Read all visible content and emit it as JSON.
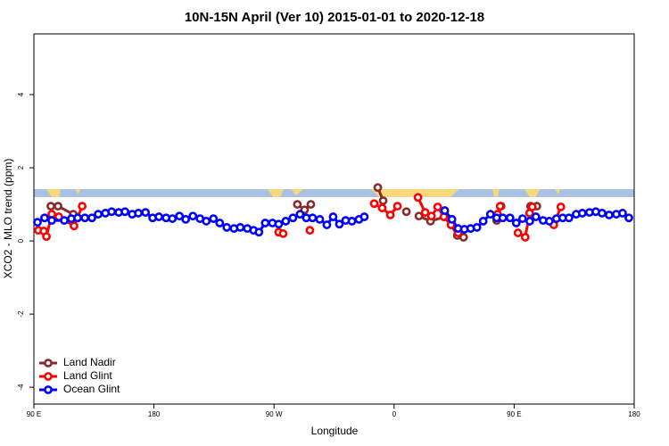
{
  "chart_data": {
    "type": "line",
    "title": "10N-15N April (Ver 10)   2015-01-01 to 2020-12-18",
    "x_label": "Longitude",
    "y_label": "XCO2 - MLO trend (ppm)",
    "xlim": [
      90,
      540
    ],
    "ylim": [
      -4.46,
      5.66
    ],
    "xticks": [
      {
        "value": 90,
        "label": "90 E"
      },
      180,
      {
        "value": 270,
        "label": "90 W"
      },
      {
        "value": 360,
        "label": "0"
      },
      {
        "value": 450,
        "label": "90 E"
      },
      {
        "value": 540,
        "label": "180"
      }
    ],
    "yticks": [
      -4,
      -2,
      0,
      2,
      4
    ],
    "legend": "bottom-left",
    "series": [
      {
        "name": "Land Nadir",
        "color": "#8b2a2a",
        "x": [
          102.7,
          108.1,
          119.5,
          null,
          287.5,
          292.9,
          297.6,
          null,
          347.8,
          351.8,
          null,
          369.2,
          null,
          378.6,
          387.3,
          398,
          402.7,
          407.4,
          412.1,
          null,
          436.9,
          440.2,
          null,
          462.3,
          467
        ],
        "values": [
          0.95,
          0.95,
          0.73,
          null,
          1.0,
          0.85,
          1.0,
          null,
          1.46,
          1.1,
          null,
          0.8,
          null,
          0.68,
          0.54,
          0.66,
          0.44,
          0.15,
          0.1,
          null,
          0.56,
          0.95,
          null,
          0.95,
          0.95
        ]
      },
      {
        "name": "Land Glint",
        "color": "#ff0000",
        "x": [
          93.3,
          97.4,
          99.4,
          103.4,
          108.7,
          120.1,
          126.2,
          null,
          273.5,
          276.8,
          null,
          296.9,
          null,
          345.1,
          351.1,
          357.2,
          362.5,
          null,
          377.9,
          383.3,
          388,
          392.7,
          397.3,
          402.7,
          408,
          null,
          437.5,
          439.5,
          null,
          452.9,
          458.3,
          461.6,
          463.6,
          null,
          479.7,
          485
        ],
        "values": [
          0.29,
          0.27,
          0.12,
          0.73,
          0.66,
          0.41,
          0.95,
          null,
          0.24,
          0.2,
          null,
          0.29,
          null,
          1.02,
          0.9,
          0.71,
          0.95,
          null,
          1.19,
          0.78,
          0.68,
          0.93,
          0.66,
          0.44,
          0.22,
          null,
          0.73,
          0.95,
          null,
          0.22,
          0.1,
          0.76,
          0.93,
          null,
          0.44,
          0.93
        ]
      },
      {
        "name": "Ocean Glint",
        "color": "#0000ff",
        "x": [
          92.7,
          98,
          103.4,
          112.8,
          118.1,
          122.8,
          128.2,
          133.5,
          138.2,
          143.6,
          148.3,
          153.6,
          158.3,
          163.7,
          168.3,
          173.7,
          179,
          183.7,
          189.1,
          193.8,
          199.1,
          203.8,
          209.2,
          214.5,
          219.2,
          224.6,
          229.3,
          234.6,
          240,
          244.7,
          250,
          254.7,
          258.7,
          263.4,
          268.8,
          273.5,
          278.8,
          284.2,
          289.5,
          294.2,
          298.9,
          304.3,
          309.6,
          314.3,
          319,
          323.7,
          328.4,
          333.7,
          337.7,
          null,
          398,
          403.4,
          408,
          412.7,
          417.4,
          422.1,
          426.8,
          432.2,
          436.9,
          441.5,
          446.9,
          451.6,
          456.3,
          461.7,
          466.3,
          471.7,
          476.4,
          481.7,
          486.4,
          491.1,
          496.5,
          501.1,
          506.5,
          511.2,
          515.9,
          521.2,
          526.6,
          531.3,
          536
        ],
        "values": [
          0.51,
          0.63,
          0.56,
          0.56,
          0.61,
          0.63,
          0.63,
          0.63,
          0.73,
          0.76,
          0.8,
          0.78,
          0.8,
          0.73,
          0.76,
          0.78,
          0.63,
          0.66,
          0.63,
          0.61,
          0.68,
          0.59,
          0.68,
          0.61,
          0.54,
          0.61,
          0.49,
          0.37,
          0.34,
          0.37,
          0.34,
          0.29,
          0.24,
          0.49,
          0.49,
          0.46,
          0.54,
          0.63,
          0.73,
          0.63,
          0.63,
          0.59,
          0.44,
          0.66,
          0.46,
          0.56,
          0.54,
          0.59,
          0.66,
          null,
          0.83,
          0.59,
          0.34,
          0.32,
          0.34,
          0.37,
          0.54,
          0.73,
          0.63,
          0.63,
          0.63,
          0.49,
          0.61,
          0.54,
          0.66,
          0.56,
          0.54,
          0.61,
          0.63,
          0.63,
          0.73,
          0.76,
          0.78,
          0.8,
          0.76,
          0.71,
          0.73,
          0.76,
          0.63
        ]
      }
    ]
  }
}
